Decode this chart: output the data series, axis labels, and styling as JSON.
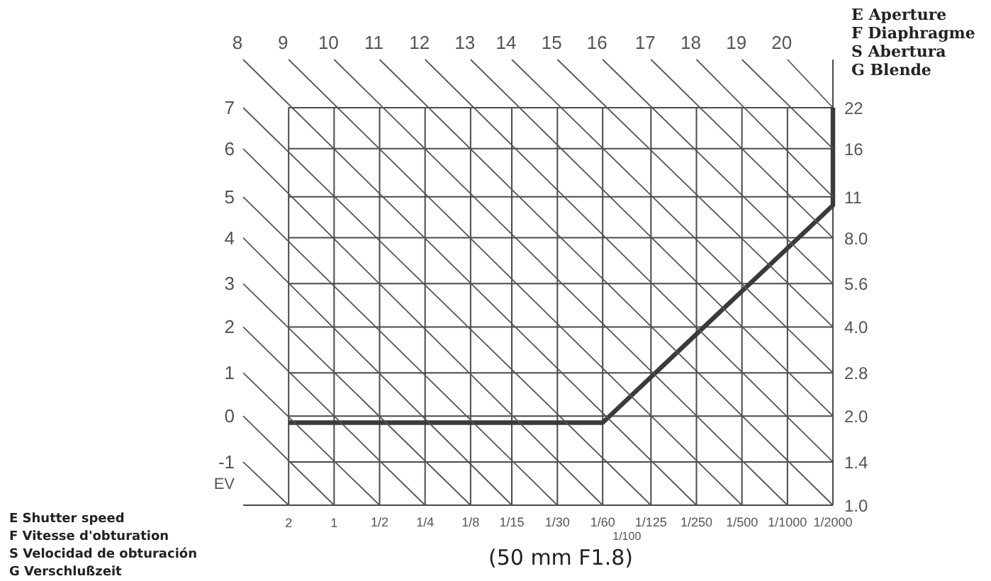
{
  "chart_data": {
    "type": "line",
    "title": "(50 mm F1.8)",
    "ylabel": "E Aperture\nF Diaphragme\nS Abertura\nG Blende",
    "xlim": [
      4,
      0.0005
    ],
    "ylim": [
      1,
      32
    ],
    "log": "xy",
    "xticks": [
      2,
      1,
      {
        "value": 0.5,
        "label": "1/2"
      },
      {
        "value": 0.25,
        "label": "1/4"
      },
      {
        "value": 0.125,
        "label": "1/8"
      },
      {
        "value": 0.0667,
        "label": "1/15"
      },
      {
        "value": 0.0333,
        "label": "1/30"
      },
      {
        "value": 0.0167,
        "label": "1/60"
      },
      {
        "value": 0.008,
        "label": "1/125"
      },
      {
        "value": 0.004,
        "label": "1/250"
      },
      {
        "value": 0.002,
        "label": "1/500"
      },
      {
        "value": 0.001,
        "label": "1/1000"
      },
      {
        "value": 0.0005,
        "label": "1/2000"
      }
    ],
    "yticks": [
      {
        "value": 1,
        "label": "1.0"
      },
      1.4,
      {
        "value": 2,
        "label": "2.0"
      },
      2.8,
      {
        "value": 4,
        "label": "4.0"
      },
      5.6,
      {
        "value": 8,
        "label": "8.0"
      },
      11,
      16,
      22
    ],
    "grid": true,
    "annotations": [
      "EV",
      "1/100",
      "E Shutter speed\nF Vitesse d'obturation\nS Velocidad de obturación\nG Verschlußzeit"
    ],
    "series": [
      {
        "color": "#3a3a3a",
        "x": [
          2,
          0.0167,
          0.0005,
          0.0005
        ],
        "values": [
          1.9,
          1.9,
          10.3,
          22
        ]
      },
      {
        "name": "-1",
        "color": "#555555",
        "x": [
          4,
          2
        ],
        "values": [
          1.4,
          1
        ]
      },
      {
        "name": "0",
        "color": "#555555",
        "x": [
          4,
          1
        ],
        "values": [
          2,
          1
        ]
      },
      {
        "name": "1",
        "color": "#555555",
        "x": [
          4,
          0.5
        ],
        "values": [
          2.8,
          1
        ]
      },
      {
        "name": "2",
        "color": "#555555",
        "x": [
          4,
          0.25
        ],
        "values": [
          4,
          1
        ]
      },
      {
        "name": "3",
        "color": "#555555",
        "x": [
          4,
          0.125
        ],
        "values": [
          5.6,
          1
        ]
      },
      {
        "name": "4",
        "color": "#555555",
        "x": [
          4,
          0.0667
        ],
        "values": [
          8,
          1
        ]
      },
      {
        "name": "5",
        "color": "#555555",
        "x": [
          4,
          0.0333
        ],
        "values": [
          11,
          1
        ]
      },
      {
        "name": "6",
        "color": "#555555",
        "x": [
          4,
          0.0167
        ],
        "values": [
          16,
          1
        ]
      },
      {
        "name": "7",
        "color": "#555555",
        "x": [
          4,
          0.008
        ],
        "values": [
          22,
          1
        ]
      },
      {
        "name": "8",
        "color": "#555555",
        "x": [
          4,
          0.004
        ],
        "values": [
          32,
          1
        ]
      },
      {
        "name": "9",
        "color": "#555555",
        "x": [
          2,
          0.002
        ],
        "values": [
          32,
          1
        ]
      },
      {
        "name": "10",
        "color": "#555555",
        "x": [
          1,
          0.001
        ],
        "values": [
          32,
          1
        ]
      },
      {
        "name": "11",
        "color": "#555555",
        "x": [
          0.5,
          0.0005
        ],
        "values": [
          32,
          1
        ]
      },
      {
        "name": "12",
        "color": "#555555",
        "x": [
          0.25,
          0.0005
        ],
        "values": [
          32,
          1.4
        ]
      },
      {
        "name": "13",
        "color": "#555555",
        "x": [
          0.125,
          0.0005
        ],
        "values": [
          32,
          2
        ]
      },
      {
        "name": "14",
        "color": "#555555",
        "x": [
          0.0667,
          0.0005
        ],
        "values": [
          32,
          2.8
        ]
      },
      {
        "name": "15",
        "color": "#555555",
        "x": [
          0.0333,
          0.0005
        ],
        "values": [
          32,
          4
        ]
      },
      {
        "name": "16",
        "color": "#555555",
        "x": [
          0.0167,
          0.0005
        ],
        "values": [
          32,
          5.6
        ]
      },
      {
        "name": "17",
        "color": "#555555",
        "x": [
          0.008,
          0.0005
        ],
        "values": [
          32,
          8
        ]
      },
      {
        "name": "18",
        "color": "#555555",
        "x": [
          0.004,
          0.0005
        ],
        "values": [
          32,
          11
        ]
      },
      {
        "name": "19",
        "color": "#555555",
        "x": [
          0.002,
          0.0005
        ],
        "values": [
          32,
          16
        ]
      },
      {
        "name": "20",
        "color": "#555555",
        "x": [
          0.001,
          0.0005
        ],
        "values": [
          32,
          22
        ]
      }
    ]
  }
}
